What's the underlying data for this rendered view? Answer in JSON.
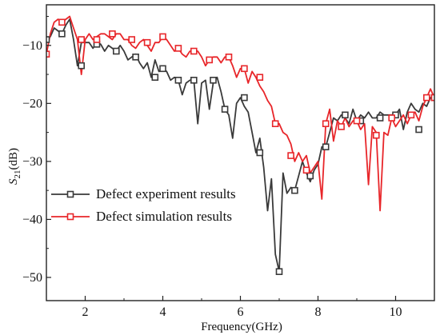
{
  "chart_data": {
    "type": "line",
    "xlabel": "Frequency(GHz)",
    "ylabel_main": "S",
    "ylabel_sub": "21",
    "ylabel_unit": "(dB)",
    "xlim": [
      1,
      11
    ],
    "ylim": [
      -54,
      -3
    ],
    "x_ticks": [
      2,
      4,
      6,
      8,
      10
    ],
    "y_ticks": [
      -10,
      -20,
      -30,
      -40,
      -50
    ],
    "x_tick_labels": [
      "2",
      "4",
      "6",
      "8",
      "10"
    ],
    "y_tick_labels": [
      "−10",
      "−20",
      "−30",
      "−40",
      "−50"
    ],
    "legend_position": "lower-left",
    "series": [
      {
        "name": "Defect experiment results",
        "color": "#3a3a3a",
        "marker": "square",
        "x": [
          1.0,
          1.1,
          1.2,
          1.3,
          1.4,
          1.5,
          1.6,
          1.7,
          1.8,
          1.9,
          2.0,
          2.1,
          2.2,
          2.3,
          2.4,
          2.5,
          2.6,
          2.7,
          2.8,
          2.9,
          3.0,
          3.1,
          3.2,
          3.3,
          3.4,
          3.5,
          3.6,
          3.7,
          3.8,
          3.9,
          4.0,
          4.1,
          4.2,
          4.3,
          4.4,
          4.5,
          4.6,
          4.7,
          4.8,
          4.9,
          5.0,
          5.1,
          5.2,
          5.3,
          5.4,
          5.5,
          5.6,
          5.7,
          5.8,
          5.9,
          6.0,
          6.1,
          6.2,
          6.3,
          6.4,
          6.5,
          6.6,
          6.7,
          6.8,
          6.9,
          7.0,
          7.1,
          7.2,
          7.3,
          7.4,
          7.5,
          7.6,
          7.7,
          7.8,
          7.9,
          8.0,
          8.1,
          8.2,
          8.3,
          8.4,
          8.5,
          8.6,
          8.7,
          8.8,
          8.9,
          9.0,
          9.1,
          9.2,
          9.3,
          9.4,
          9.5,
          9.6,
          9.7,
          9.8,
          9.9,
          10.0,
          10.1,
          10.2,
          10.3,
          10.4,
          10.5,
          10.6,
          10.7,
          10.8,
          10.9,
          11.0
        ],
        "values": [
          -9.0,
          -8.5,
          -7.0,
          -7.5,
          -8.0,
          -6.5,
          -5.5,
          -9.0,
          -13.5,
          -9.5,
          -9.5,
          -9.5,
          -10.5,
          -9.5,
          -9.8,
          -11.0,
          -10.0,
          -10.5,
          -11.0,
          -10.0,
          -11.0,
          -12.5,
          -12.0,
          -11.5,
          -13.0,
          -14.0,
          -13.0,
          -15.5,
          -12.5,
          -14.5,
          -14.0,
          -14.5,
          -16.0,
          -15.5,
          -16.0,
          -18.5,
          -16.5,
          -16.0,
          -16.0,
          -23.5,
          -16.5,
          -16.0,
          -21.0,
          -16.5,
          -15.5,
          -18.0,
          -21.0,
          -22.0,
          -26.0,
          -20.0,
          -19.0,
          -20.5,
          -21.5,
          -25.0,
          -28.5,
          -26.0,
          -31.0,
          -38.5,
          -33.0,
          -46.0,
          -49.0,
          -32.0,
          -35.5,
          -34.5,
          -35.0,
          -32.5,
          -30.0,
          -32.0,
          -33.5,
          -31.5,
          -30.5,
          -27.5,
          -27.5,
          -25.0,
          -22.5,
          -23.0,
          -22.0,
          -22.5,
          -23.5,
          -21.0,
          -23.0,
          -22.0,
          -22.5,
          -21.5,
          -22.5,
          -22.5,
          -21.5,
          -22.0,
          -22.0,
          -22.0,
          -22.0,
          -21.0,
          -24.5,
          -21.5,
          -20.0,
          -21.0,
          -21.5,
          -20.0,
          -20.5,
          -19.0,
          -19.0
        ]
      },
      {
        "name": "Defect simulation results",
        "color": "#e8262a",
        "marker": "square",
        "x": [
          1.0,
          1.1,
          1.2,
          1.3,
          1.4,
          1.5,
          1.6,
          1.7,
          1.8,
          1.9,
          2.0,
          2.1,
          2.2,
          2.3,
          2.4,
          2.5,
          2.6,
          2.7,
          2.8,
          2.9,
          3.0,
          3.1,
          3.2,
          3.3,
          3.4,
          3.5,
          3.6,
          3.7,
          3.8,
          3.9,
          4.0,
          4.1,
          4.2,
          4.3,
          4.4,
          4.5,
          4.6,
          4.7,
          4.8,
          4.9,
          5.0,
          5.1,
          5.2,
          5.3,
          5.4,
          5.5,
          5.6,
          5.7,
          5.8,
          5.9,
          6.0,
          6.1,
          6.2,
          6.3,
          6.4,
          6.5,
          6.6,
          6.7,
          6.8,
          6.9,
          7.0,
          7.1,
          7.2,
          7.3,
          7.4,
          7.5,
          7.6,
          7.7,
          7.8,
          7.9,
          8.0,
          8.1,
          8.2,
          8.3,
          8.4,
          8.5,
          8.6,
          8.7,
          8.8,
          8.9,
          9.0,
          9.1,
          9.2,
          9.3,
          9.4,
          9.5,
          9.6,
          9.7,
          9.8,
          9.9,
          10.0,
          10.1,
          10.2,
          10.3,
          10.4,
          10.5,
          10.6,
          10.7,
          10.8,
          10.9,
          11.0
        ],
        "values": [
          -11.5,
          -8.0,
          -6.0,
          -5.5,
          -6.0,
          -5.5,
          -5.0,
          -7.0,
          -9.0,
          -15.0,
          -9.0,
          -8.0,
          -9.0,
          -8.5,
          -8.0,
          -8.0,
          -8.5,
          -9.0,
          -8.0,
          -8.0,
          -9.0,
          -9.0,
          -10.0,
          -10.5,
          -9.5,
          -9.0,
          -10.0,
          -11.0,
          -9.5,
          -9.5,
          -8.5,
          -9.0,
          -10.0,
          -11.0,
          -10.5,
          -11.5,
          -12.0,
          -11.0,
          -11.0,
          -11.0,
          -12.0,
          -13.5,
          -12.5,
          -12.0,
          -12.0,
          -13.0,
          -12.0,
          -12.0,
          -13.5,
          -15.5,
          -14.0,
          -14.0,
          -16.5,
          -14.5,
          -15.5,
          -17.0,
          -18.0,
          -19.5,
          -20.5,
          -23.5,
          -23.5,
          -25.0,
          -25.5,
          -27.0,
          -30.0,
          -28.5,
          -30.0,
          -29.0,
          -32.0,
          -31.0,
          -30.0,
          -36.5,
          -23.5,
          -21.0,
          -26.5,
          -23.0,
          -24.0,
          -22.5,
          -24.0,
          -23.0,
          -23.0,
          -24.5,
          -23.5,
          -34.0,
          -24.0,
          -25.0,
          -38.5,
          -25.0,
          -25.5,
          -22.5,
          -24.0,
          -23.0,
          -22.0,
          -23.5,
          -22.0,
          -21.5,
          -23.0,
          -20.5,
          -19.0,
          -17.5,
          -19.0
        ]
      }
    ],
    "markers": [
      {
        "series": 0,
        "x": [
          1.0,
          1.4,
          1.9,
          2.3,
          2.8,
          3.3,
          3.8,
          4.0,
          4.4,
          4.8,
          5.3,
          5.6,
          6.1,
          6.5,
          7.0,
          7.4,
          7.8,
          8.2,
          8.7,
          9.1,
          9.6,
          10.0,
          10.6,
          11.0
        ],
        "values": [
          -9.0,
          -8.0,
          -13.5,
          -9.8,
          -11.0,
          -12.0,
          -15.5,
          -14.0,
          -16.0,
          -16.0,
          -16.0,
          -21.0,
          -19.0,
          -28.5,
          -49.0,
          -35.0,
          -32.5,
          -27.5,
          -22.0,
          -23.0,
          -22.5,
          -22.0,
          -24.5,
          -19.0
        ]
      },
      {
        "series": 1,
        "x": [
          1.0,
          1.4,
          1.9,
          2.3,
          2.7,
          3.2,
          3.6,
          4.0,
          4.4,
          4.8,
          5.2,
          5.7,
          6.1,
          6.5,
          6.9,
          7.3,
          7.7,
          8.2,
          8.6,
          9.0,
          9.5,
          9.9,
          10.4,
          10.8,
          11.0
        ],
        "values": [
          -11.5,
          -6.0,
          -9.0,
          -9.0,
          -8.0,
          -9.0,
          -9.5,
          -8.5,
          -10.5,
          -11.0,
          -12.5,
          -12.0,
          -14.0,
          -15.5,
          -23.5,
          -29.0,
          -31.5,
          -23.5,
          -24.0,
          -23.0,
          -25.5,
          -22.5,
          -22.0,
          -19.0,
          -19.0
        ]
      }
    ]
  }
}
